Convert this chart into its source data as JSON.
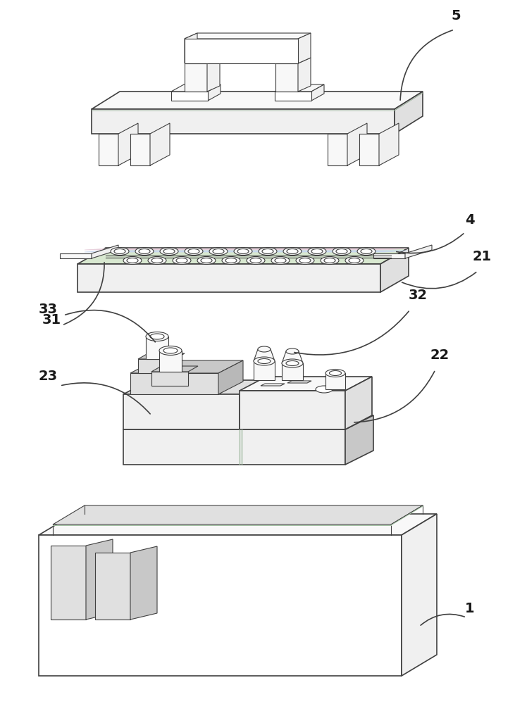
{
  "bg": "#ffffff",
  "lc": "#404040",
  "lw": 1.2,
  "tlw": 0.8,
  "white": "#ffffff",
  "light": "#f0f0f0",
  "lighter": "#f8f8f8",
  "mid": "#e0e0e0",
  "dark": "#c8c8c8",
  "pink": "#e8d0dc",
  "blue_g": "#d8e8d0",
  "label_fs": 14
}
